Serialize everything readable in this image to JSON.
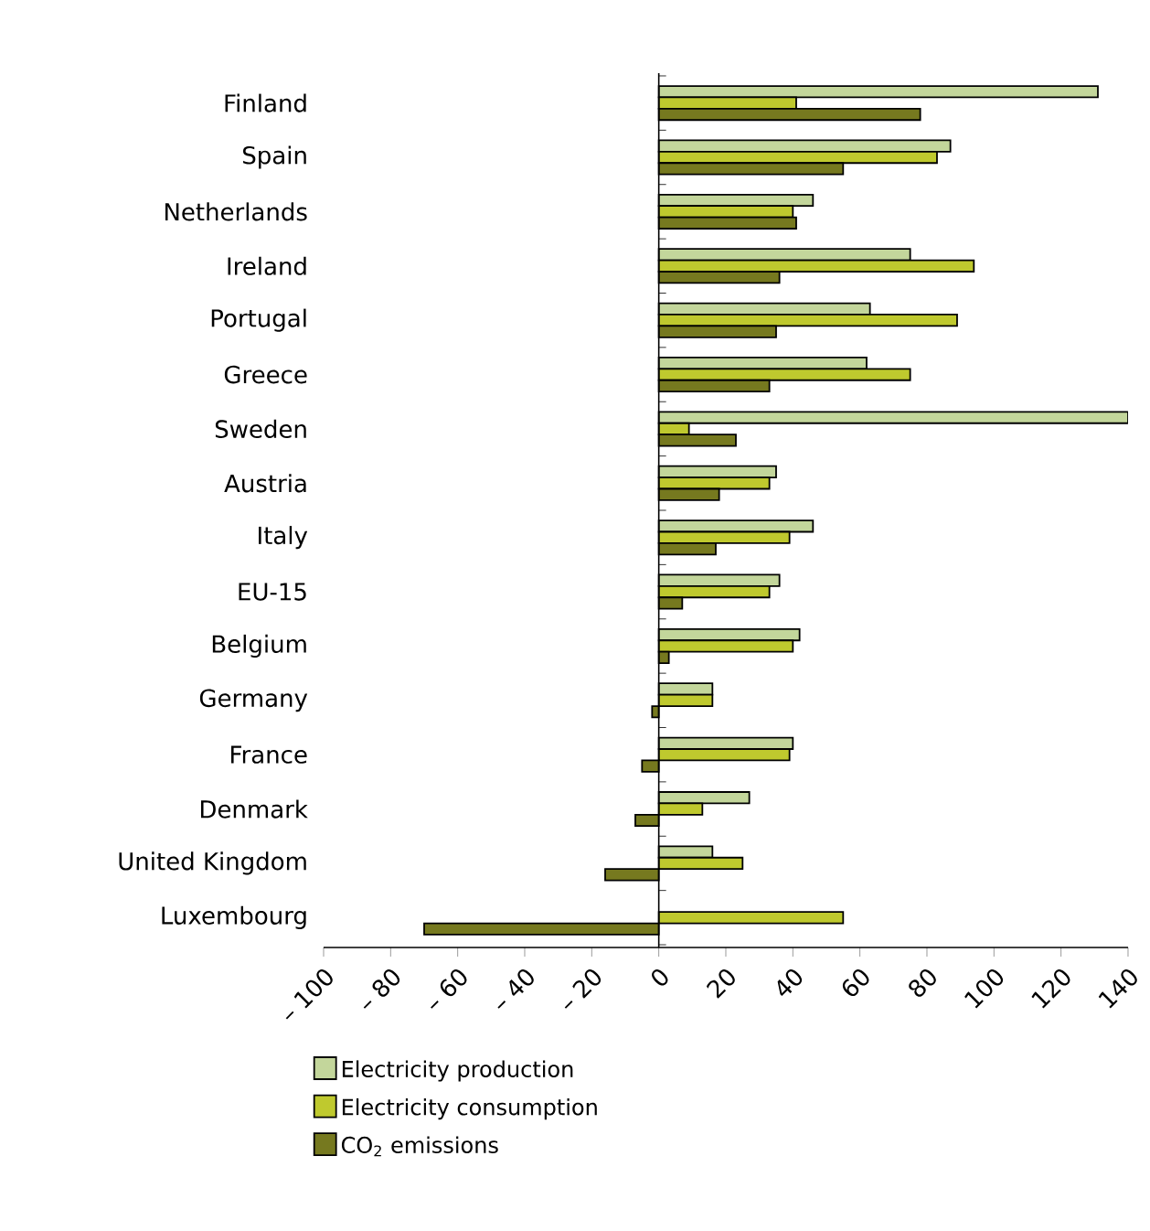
{
  "chart_data": {
    "type": "bar",
    "orientation": "horizontal",
    "categories": [
      "Finland",
      "Spain",
      "Netherlands",
      "Ireland",
      "Portugal",
      "Greece",
      "Sweden",
      "Austria",
      "Italy",
      "EU-15",
      "Belgium",
      "Germany",
      "France",
      "Denmark",
      "United Kingdom",
      "Luxembourg"
    ],
    "series": [
      {
        "name": "Electricity production",
        "color": "#c3d69b",
        "values": [
          131,
          87,
          46,
          75,
          63,
          62,
          140,
          35,
          46,
          36,
          42,
          16,
          40,
          27,
          16,
          null
        ]
      },
      {
        "name": "Electricity consumption",
        "color": "#bfc92e",
        "values": [
          41,
          83,
          40,
          94,
          89,
          75,
          9,
          33,
          39,
          33,
          40,
          16,
          39,
          13,
          25,
          55
        ]
      },
      {
        "name": "CO$_{2}$ emissions",
        "color": "#76791f",
        "values": [
          78,
          55,
          41,
          36,
          35,
          33,
          23,
          18,
          17,
          7,
          3,
          -2,
          -5,
          -7,
          -16,
          -70
        ]
      }
    ],
    "xlim": [
      -100,
      140
    ],
    "xticks": [
      {
        "value": -100,
        "label": "– 100"
      },
      {
        "value": -80,
        "label": "– 80"
      },
      {
        "value": -60,
        "label": "– 60"
      },
      {
        "value": -40,
        "label": "– 40"
      },
      {
        "value": -20,
        "label": "– 20"
      },
      0,
      20,
      40,
      60,
      80,
      100,
      120,
      140
    ],
    "ref_lines": [
      {
        "axis": "x",
        "value": 0,
        "color": "#000000"
      }
    ],
    "legend": "bottom",
    "grid": false
  }
}
